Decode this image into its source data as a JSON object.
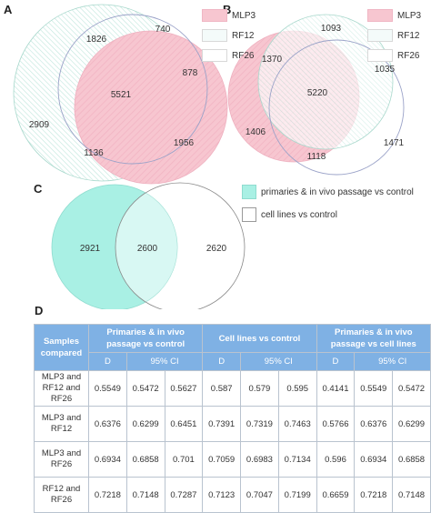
{
  "panels": {
    "a": "A",
    "b": "B",
    "c": "C",
    "d": "D"
  },
  "colors": {
    "mlp3": "#f7c6d0",
    "rf12": "#dff2ee",
    "rf26": "#ffffff",
    "primaries": "#a9f0e4",
    "header": "#7fb1e4"
  },
  "venn_a": {
    "legend": [
      "MLP3",
      "RF12",
      "RF26"
    ],
    "values": {
      "only_rf12": "1826",
      "only_rf26": "740",
      "all": "5521",
      "mlp3_rf26": "878",
      "only_mlp3_left": "2909",
      "mlp3_rf12": "1136",
      "only_mlp3": "1956"
    }
  },
  "venn_b": {
    "legend": [
      "MLP3",
      "RF12",
      "RF26"
    ],
    "values": {
      "only_rf12": "1093",
      "rf12_mlp3": "1370",
      "rf12_rf26": "1035",
      "all": "5220",
      "only_mlp3": "1406",
      "mlp3_rf26": "1118",
      "only_rf26": "1471"
    }
  },
  "venn_c": {
    "legend": [
      "primaries & in vivo passage vs control",
      "cell lines vs control"
    ],
    "values": {
      "left": "2921",
      "center": "2600",
      "right": "2620"
    }
  },
  "table": {
    "corner": "Samples compared",
    "groups": [
      "Primaries & in vivo passage vs control",
      "Cell lines vs control",
      "Primaries & in vivo passage vs cell lines"
    ],
    "subheaders": [
      "D",
      "95% CI"
    ],
    "rows": [
      {
        "label": "MLP3 and RF12 and RF26",
        "values": [
          "0.5549",
          "0.5472",
          "0.5627",
          "0.587",
          "0.579",
          "0.595",
          "0.4141",
          "0.5549",
          "0.5472"
        ]
      },
      {
        "label": "MLP3 and RF12",
        "values": [
          "0.6376",
          "0.6299",
          "0.6451",
          "0.7391",
          "0.7319",
          "0.7463",
          "0.5766",
          "0.6376",
          "0.6299"
        ]
      },
      {
        "label": "MLP3 and RF26",
        "values": [
          "0.6934",
          "0.6858",
          "0.701",
          "0.7059",
          "0.6983",
          "0.7134",
          "0.596",
          "0.6934",
          "0.6858"
        ]
      },
      {
        "label": "RF12 and RF26",
        "values": [
          "0.7218",
          "0.7148",
          "0.7287",
          "0.7123",
          "0.7047",
          "0.7199",
          "0.6659",
          "0.7218",
          "0.7148"
        ]
      }
    ]
  }
}
